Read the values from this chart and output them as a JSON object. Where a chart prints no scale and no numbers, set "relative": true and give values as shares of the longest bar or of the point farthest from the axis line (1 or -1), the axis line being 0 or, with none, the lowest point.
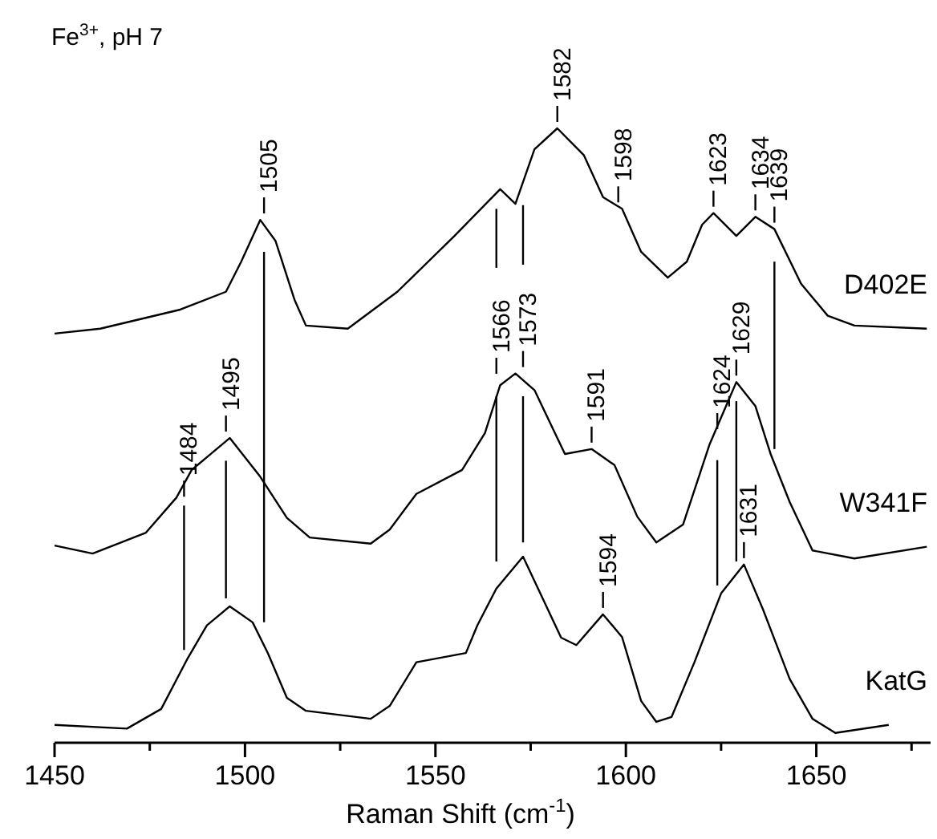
{
  "chart_data": {
    "type": "line",
    "title": "Fe$^{3+}$, pH 7",
    "xlabel": "Raman Shift (cm$^{-1}$)",
    "relative": true,
    "xlim": [
      1450,
      1680
    ],
    "xticks": [
      1450,
      {
        "value": 1475,
        "label": null
      },
      1500,
      {
        "value": 1525,
        "label": null
      },
      1550,
      {
        "value": 1575,
        "label": null
      },
      1600,
      {
        "value": 1625,
        "label": null
      },
      1650,
      {
        "value": 1675,
        "label": null
      }
    ],
    "series": [
      {
        "name": "D402E",
        "color": "#000000",
        "x": [
          1450,
          1462,
          1483,
          1495,
          1499,
          1504,
          1508,
          1513,
          1516,
          1527,
          1540,
          1555,
          1567,
          1571,
          1576,
          1582,
          1589,
          1594,
          1599,
          1604,
          1611,
          1616,
          1620,
          1623,
          1629,
          1634,
          1639,
          1646,
          1653,
          1660,
          1679
        ],
        "values": [
          0.666,
          0.674,
          0.705,
          0.734,
          0.783,
          0.851,
          0.817,
          0.721,
          0.679,
          0.674,
          0.734,
          0.825,
          0.901,
          0.877,
          0.966,
          1,
          0.956,
          0.888,
          0.869,
          0.799,
          0.757,
          0.783,
          0.843,
          0.862,
          0.825,
          0.856,
          0.836,
          0.747,
          0.695,
          0.679,
          0.674
        ]
      },
      {
        "name": "W341F",
        "color": "#000000",
        "x": [
          1450,
          1460,
          1474,
          1482,
          1486,
          1496,
          1504,
          1511,
          1517,
          1533,
          1538,
          1545,
          1557,
          1563,
          1567,
          1571,
          1576,
          1584,
          1591,
          1597,
          1603,
          1608,
          1615,
          1622,
          1629,
          1634,
          1638,
          1643,
          1649,
          1660,
          1679
        ],
        "values": [
          0.321,
          0.308,
          0.342,
          0.399,
          0.444,
          0.496,
          0.433,
          0.366,
          0.334,
          0.324,
          0.347,
          0.405,
          0.444,
          0.504,
          0.582,
          0.601,
          0.574,
          0.47,
          0.478,
          0.452,
          0.368,
          0.326,
          0.355,
          0.486,
          0.587,
          0.548,
          0.47,
          0.392,
          0.313,
          0.3,
          0.319
        ]
      },
      {
        "name": "KatG",
        "color": "#000000",
        "x": [
          1450,
          1469,
          1478,
          1485,
          1490,
          1496,
          1502,
          1506,
          1511,
          1516,
          1533,
          1538,
          1545,
          1558,
          1561,
          1566,
          1573,
          1583,
          1587,
          1594,
          1599,
          1604,
          1608,
          1612,
          1618,
          1625,
          1631,
          1636,
          1643,
          1649,
          1655,
          1669
        ],
        "values": [
          0.029,
          0.023,
          0.055,
          0.138,
          0.191,
          0.222,
          0.196,
          0.146,
          0.073,
          0.052,
          0.039,
          0.06,
          0.131,
          0.146,
          0.191,
          0.251,
          0.303,
          0.171,
          0.159,
          0.209,
          0.172,
          0.068,
          0.034,
          0.042,
          0.131,
          0.243,
          0.29,
          0.217,
          0.104,
          0.039,
          0.016,
          0.029
        ]
      },
      {
        "color": "#000000",
        "x": [
          1484,
          1484
        ],
        "values": [
          0.386,
          0.151
        ]
      },
      {
        "color": "#000000",
        "x": [
          1495,
          1495
        ],
        "values": [
          0.459,
          0.235
        ]
      },
      {
        "color": "#000000",
        "x": [
          1505,
          1505
        ],
        "values": [
          0.799,
          0.196
        ]
      },
      {
        "color": "#000000",
        "x": [
          1566,
          1566
        ],
        "values": [
          0.869,
          0.773
        ]
      },
      {
        "color": "#000000",
        "x": [
          1566,
          1566
        ],
        "values": [
          0.564,
          0.295
        ]
      },
      {
        "color": "#000000",
        "x": [
          1573,
          1573
        ],
        "values": [
          0.875,
          0.778
        ]
      },
      {
        "color": "#000000",
        "x": [
          1573,
          1573
        ],
        "values": [
          0.564,
          0.326
        ]
      },
      {
        "color": "#000000",
        "x": [
          1624,
          1624
        ],
        "values": [
          0.46,
          0.256
        ]
      },
      {
        "color": "#000000",
        "x": [
          1629,
          1629
        ],
        "values": [
          0.556,
          0.295
        ]
      },
      {
        "color": "#000000",
        "x": [
          1639,
          1639
        ],
        "values": [
          0.783,
          0.478
        ]
      }
    ],
    "annotations": [
      {
        "text": "1505",
        "x": 1505,
        "y": 0.851
      },
      {
        "text": "1582",
        "x": 1582,
        "y": 1
      },
      {
        "text": "1598",
        "x": 1598,
        "y": 0.869
      },
      {
        "text": "1623",
        "x": 1623,
        "y": 0.862
      },
      {
        "text": "1634",
        "x": 1634,
        "y": 0.856
      },
      {
        "text": "1639",
        "x": 1639,
        "y": 0.836
      },
      {
        "text": "1484",
        "x": 1484,
        "y": 0.39
      },
      {
        "text": "1495",
        "x": 1495,
        "y": 0.496
      },
      {
        "text": "1566",
        "x": 1566,
        "y": 0.59
      },
      {
        "text": "1573",
        "x": 1573,
        "y": 0.601
      },
      {
        "text": "1591",
        "x": 1591,
        "y": 0.478
      },
      {
        "text": "1624",
        "x": 1624,
        "y": 0.5
      },
      {
        "text": "1629",
        "x": 1629,
        "y": 0.587
      },
      {
        "text": "1594",
        "x": 1594,
        "y": 0.209
      },
      {
        "text": "1631",
        "x": 1631,
        "y": 0.29
      }
    ]
  }
}
